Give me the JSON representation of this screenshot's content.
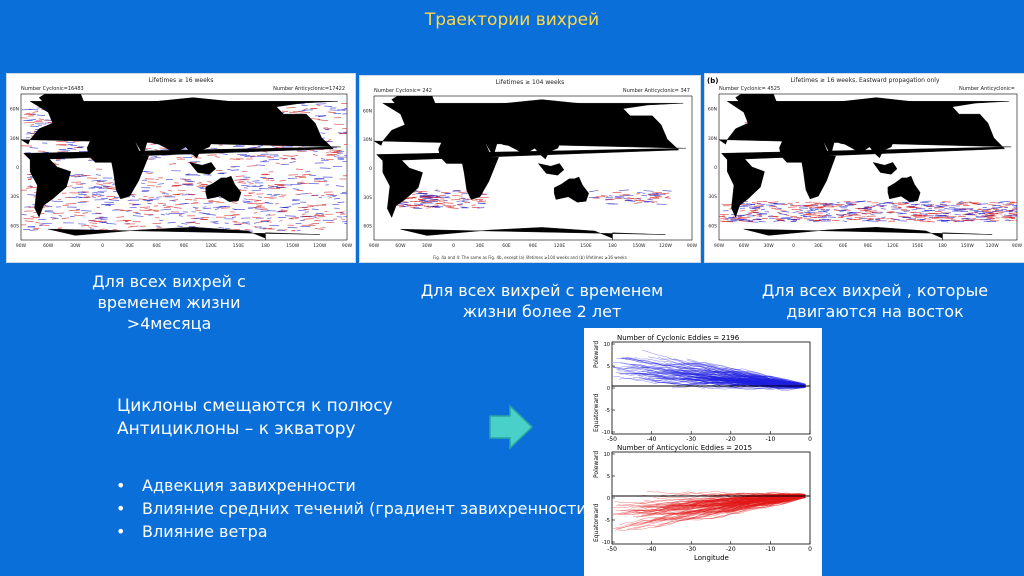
{
  "title": "Траектории вихрей",
  "maps": [
    {
      "header": "Lifetimes ≥ 16 weeks",
      "count_left": "Number Cyclonic=16483",
      "count_right": "Number Anticyclonic=17422",
      "panel_letter": "",
      "footer": "",
      "lon_ticks": [
        "90W",
        "60W",
        "30W",
        "0",
        "30E",
        "60E",
        "90E",
        "120E",
        "150E",
        "180",
        "150W",
        "120W",
        "90W"
      ],
      "lat_ticks": [
        "60N",
        "30N",
        "0",
        "30S",
        "60S"
      ]
    },
    {
      "header": "Lifetimes ≥ 104 weeks",
      "count_left": "Number Cyclonic= 242",
      "count_right": "Number Anticyclonic= 347",
      "panel_letter": "",
      "footer": "Fig. 4a and 4: The same as Fig. 4b, except (a) lifetimes ≥104 weeks and (b) lifetimes ≥16 weeks",
      "lon_ticks": [
        "90W",
        "60W",
        "30W",
        "0",
        "30E",
        "60E",
        "90E",
        "120E",
        "150E",
        "180",
        "150W",
        "120W",
        "90W"
      ],
      "lat_ticks": [
        "60N",
        "30N",
        "0",
        "30S",
        "60S"
      ]
    },
    {
      "header": "Lifetimes ≥ 16 weeks, Eastward propagation only",
      "count_left": "Number Cyclonic= 4525",
      "count_right": "Number Anticyclonic=",
      "panel_letter": "(b)",
      "footer": "",
      "lon_ticks": [
        "90W",
        "60W",
        "30W",
        "0",
        "30E",
        "60E",
        "90E",
        "120E",
        "150E",
        "180",
        "150W",
        "120W",
        "90W"
      ],
      "lat_ticks": [
        "60N",
        "30N",
        "0",
        "30S",
        "60S"
      ]
    }
  ],
  "captions": [
    "Для всех вихрей с временем жизни >4месяца",
    "Для всех вихрей с временем жизни более 2 лет",
    "Для всех вихрей , которые двигаются на восток"
  ],
  "main_text": {
    "line1": "Циклоны смещаются к полюсу",
    "line2": "Антициклоны – к экватору"
  },
  "bullets": [
    "Адвекция завихренности",
    "Влияние средних течений (градиент завихренности)",
    "Влияние ветра"
  ],
  "tracks": {
    "cyclonic_title": "Number of Cyclonic Eddies = 2196",
    "anticyclonic_title": "Number of Anticyclonic Eddies = 2015",
    "y_label_top": "Poleward",
    "y_label_bottom": "Equatorward",
    "x_label": "Longitude",
    "x_ticks": [
      "-50",
      "-40",
      "-30",
      "-20",
      "-10",
      "0"
    ],
    "y_ticks": [
      "10",
      "5",
      "0",
      "-5",
      "-10"
    ]
  },
  "colors": {
    "background": "#0a6fd8",
    "title": "#ffd84a",
    "arrow": "#49d0c8",
    "cyclonic": "#1f1fe0",
    "anticyclonic": "#e01818"
  }
}
